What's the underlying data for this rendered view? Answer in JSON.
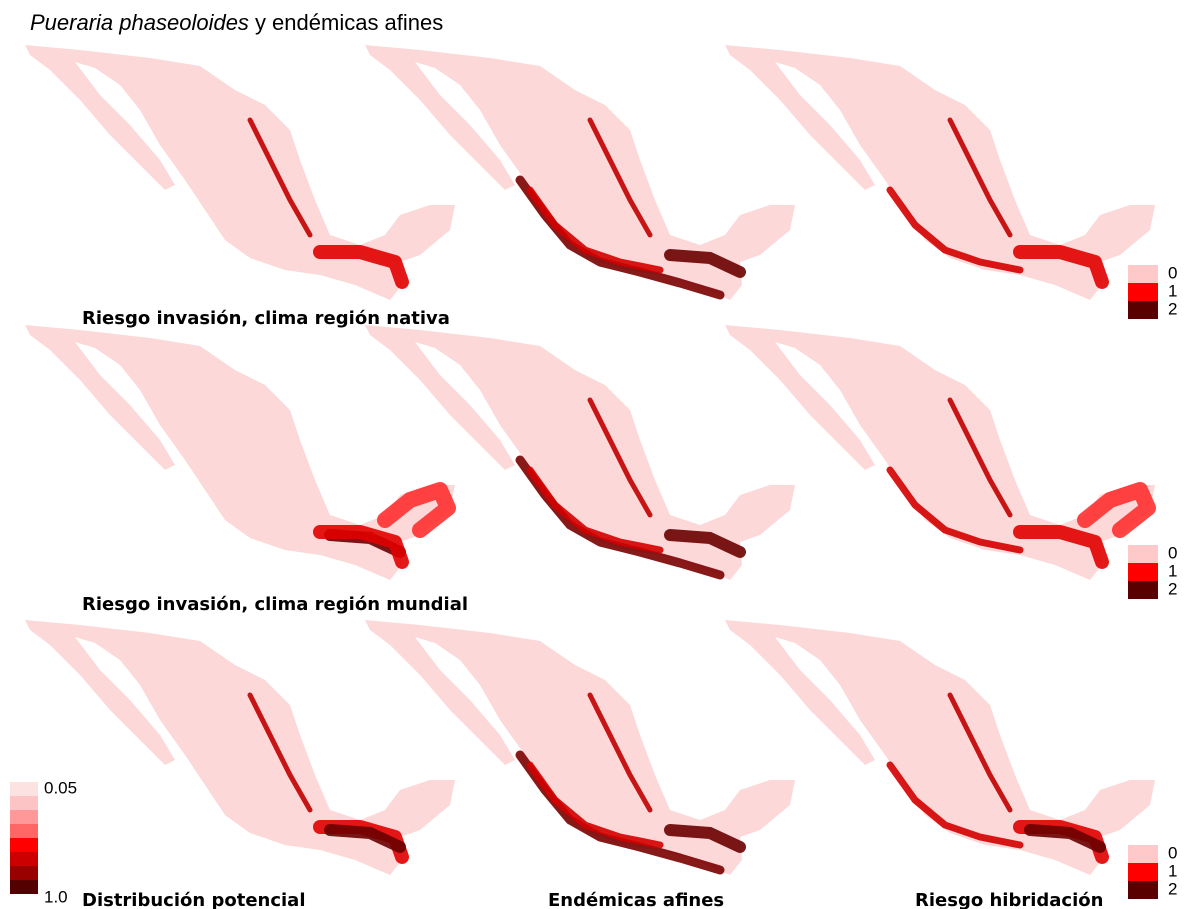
{
  "title": {
    "species": "Pueraria phaseoloides",
    "suffix": "y endémicas afines"
  },
  "row_labels": [
    "Riesgo invasión, clima región nativa",
    "Riesgo invasión, clima región mundial"
  ],
  "column_labels": [
    "Distribución potencial",
    "Endémicas afines",
    "Riesgo hibridación"
  ],
  "risk_legends": [
    [
      "0",
      "1",
      "2"
    ],
    [
      "0",
      "1",
      "2"
    ],
    [
      "0",
      "1",
      "2"
    ]
  ],
  "risk_colors": [
    "#ffc9c9",
    "#ff0000",
    "#5a0000"
  ],
  "gradient_legend": {
    "top": "0.05",
    "bottom": "1.0"
  }
}
